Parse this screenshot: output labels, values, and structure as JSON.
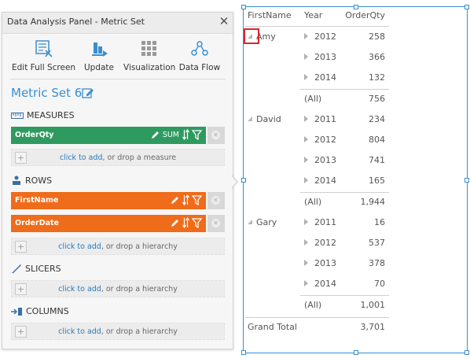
{
  "panel": {
    "title": "Data Analysis Panel - Metric Set",
    "close_glyph": "✕",
    "toolbar": [
      {
        "label": "Edit Full Screen",
        "icon": "edit-full-screen-icon"
      },
      {
        "label": "Update",
        "icon": "update-icon"
      },
      {
        "label": "Visualization",
        "icon": "visualization-grid-icon"
      },
      {
        "label": "Data Flow",
        "icon": "data-flow-icon"
      }
    ],
    "metric_set_name": "Metric Set 6",
    "measures": {
      "heading": "MEASURES",
      "fields": [
        {
          "label": "OrderQty",
          "aggregation": "SUM"
        }
      ],
      "drop_link": "click to add",
      "drop_rest": ", or drop a measure"
    },
    "rows": {
      "heading": "ROWS",
      "fields": [
        {
          "label": "FirstName"
        },
        {
          "label": "OrderDate"
        }
      ],
      "drop_link": "click to add",
      "drop_rest": ", or drop a hierarchy"
    },
    "slicers": {
      "heading": "SLICERS",
      "drop_link": "click to add",
      "drop_rest": ", or drop a hierarchy"
    },
    "columns": {
      "heading": "COLUMNS",
      "drop_link": "click to add",
      "drop_rest": ", or drop a hierarchy"
    },
    "colors": {
      "accent": "#3a8ecf",
      "measure": "#2f9a60",
      "row": "#ef6c1a"
    }
  },
  "pivot": {
    "headers": {
      "first_name": "FirstName",
      "year": "Year",
      "qty": "OrderQty"
    },
    "groups": [
      {
        "name": "Amy",
        "years": [
          {
            "year": "2012",
            "qty": "258"
          },
          {
            "year": "2013",
            "qty": "366"
          },
          {
            "year": "2014",
            "qty": "132"
          }
        ],
        "all_label": "(All)",
        "all_qty": "756"
      },
      {
        "name": "David",
        "years": [
          {
            "year": "2011",
            "qty": "234"
          },
          {
            "year": "2012",
            "qty": "804"
          },
          {
            "year": "2013",
            "qty": "741"
          },
          {
            "year": "2014",
            "qty": "165"
          }
        ],
        "all_label": "(All)",
        "all_qty": "1,944"
      },
      {
        "name": "Gary",
        "years": [
          {
            "year": "2011",
            "qty": "16"
          },
          {
            "year": "2012",
            "qty": "537"
          },
          {
            "year": "2013",
            "qty": "378"
          },
          {
            "year": "2014",
            "qty": "70"
          }
        ],
        "all_label": "(All)",
        "all_qty": "1,001"
      }
    ],
    "grand_total_label": "Grand Total",
    "grand_total": "3,701"
  }
}
